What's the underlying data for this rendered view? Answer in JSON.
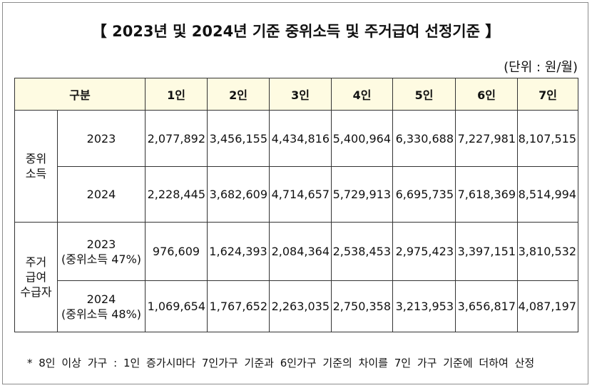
{
  "title": "【 2023년 및 2024년 기준 중위소득 및 주거급여 선정기준 】",
  "unit_note": "(단위 : 원/월)",
  "header": {
    "category": "구분",
    "persons": [
      "1인",
      "2인",
      "3인",
      "4인",
      "5인",
      "6인",
      "7인"
    ]
  },
  "groups": [
    {
      "label_lines": [
        "중위",
        "소득"
      ],
      "rows": [
        {
          "year": "2023",
          "sub": "",
          "values": [
            "2,077,892",
            "3,456,155",
            "4,434,816",
            "5,400,964",
            "6,330,688",
            "7,227,981",
            "8,107,515"
          ]
        },
        {
          "year": "2024",
          "sub": "",
          "values": [
            "2,228,445",
            "3,682,609",
            "4,714,657",
            "5,729,913",
            "6,695,735",
            "7,618,369",
            "8,514,994"
          ]
        }
      ]
    },
    {
      "label_lines": [
        "주거",
        "급여",
        "수급자"
      ],
      "rows": [
        {
          "year": "2023",
          "sub": "(중위소득 47%)",
          "values": [
            "976,609",
            "1,624,393",
            "2,084,364",
            "2,538,453",
            "2,975,423",
            "3,397,151",
            "3,810,532"
          ]
        },
        {
          "year": "2024",
          "sub": "(중위소득 48%)",
          "values": [
            "1,069,654",
            "1,767,652",
            "2,263,035",
            "2,750,358",
            "3,213,953",
            "3,656,817",
            "4,087,197"
          ]
        }
      ]
    }
  ],
  "footnote": "* 8인 이상 가구 : 1인 증가시마다 7인가구 기준과 6인가구 기준의 차이를 7인 가구 기준에 더하여 산정"
}
